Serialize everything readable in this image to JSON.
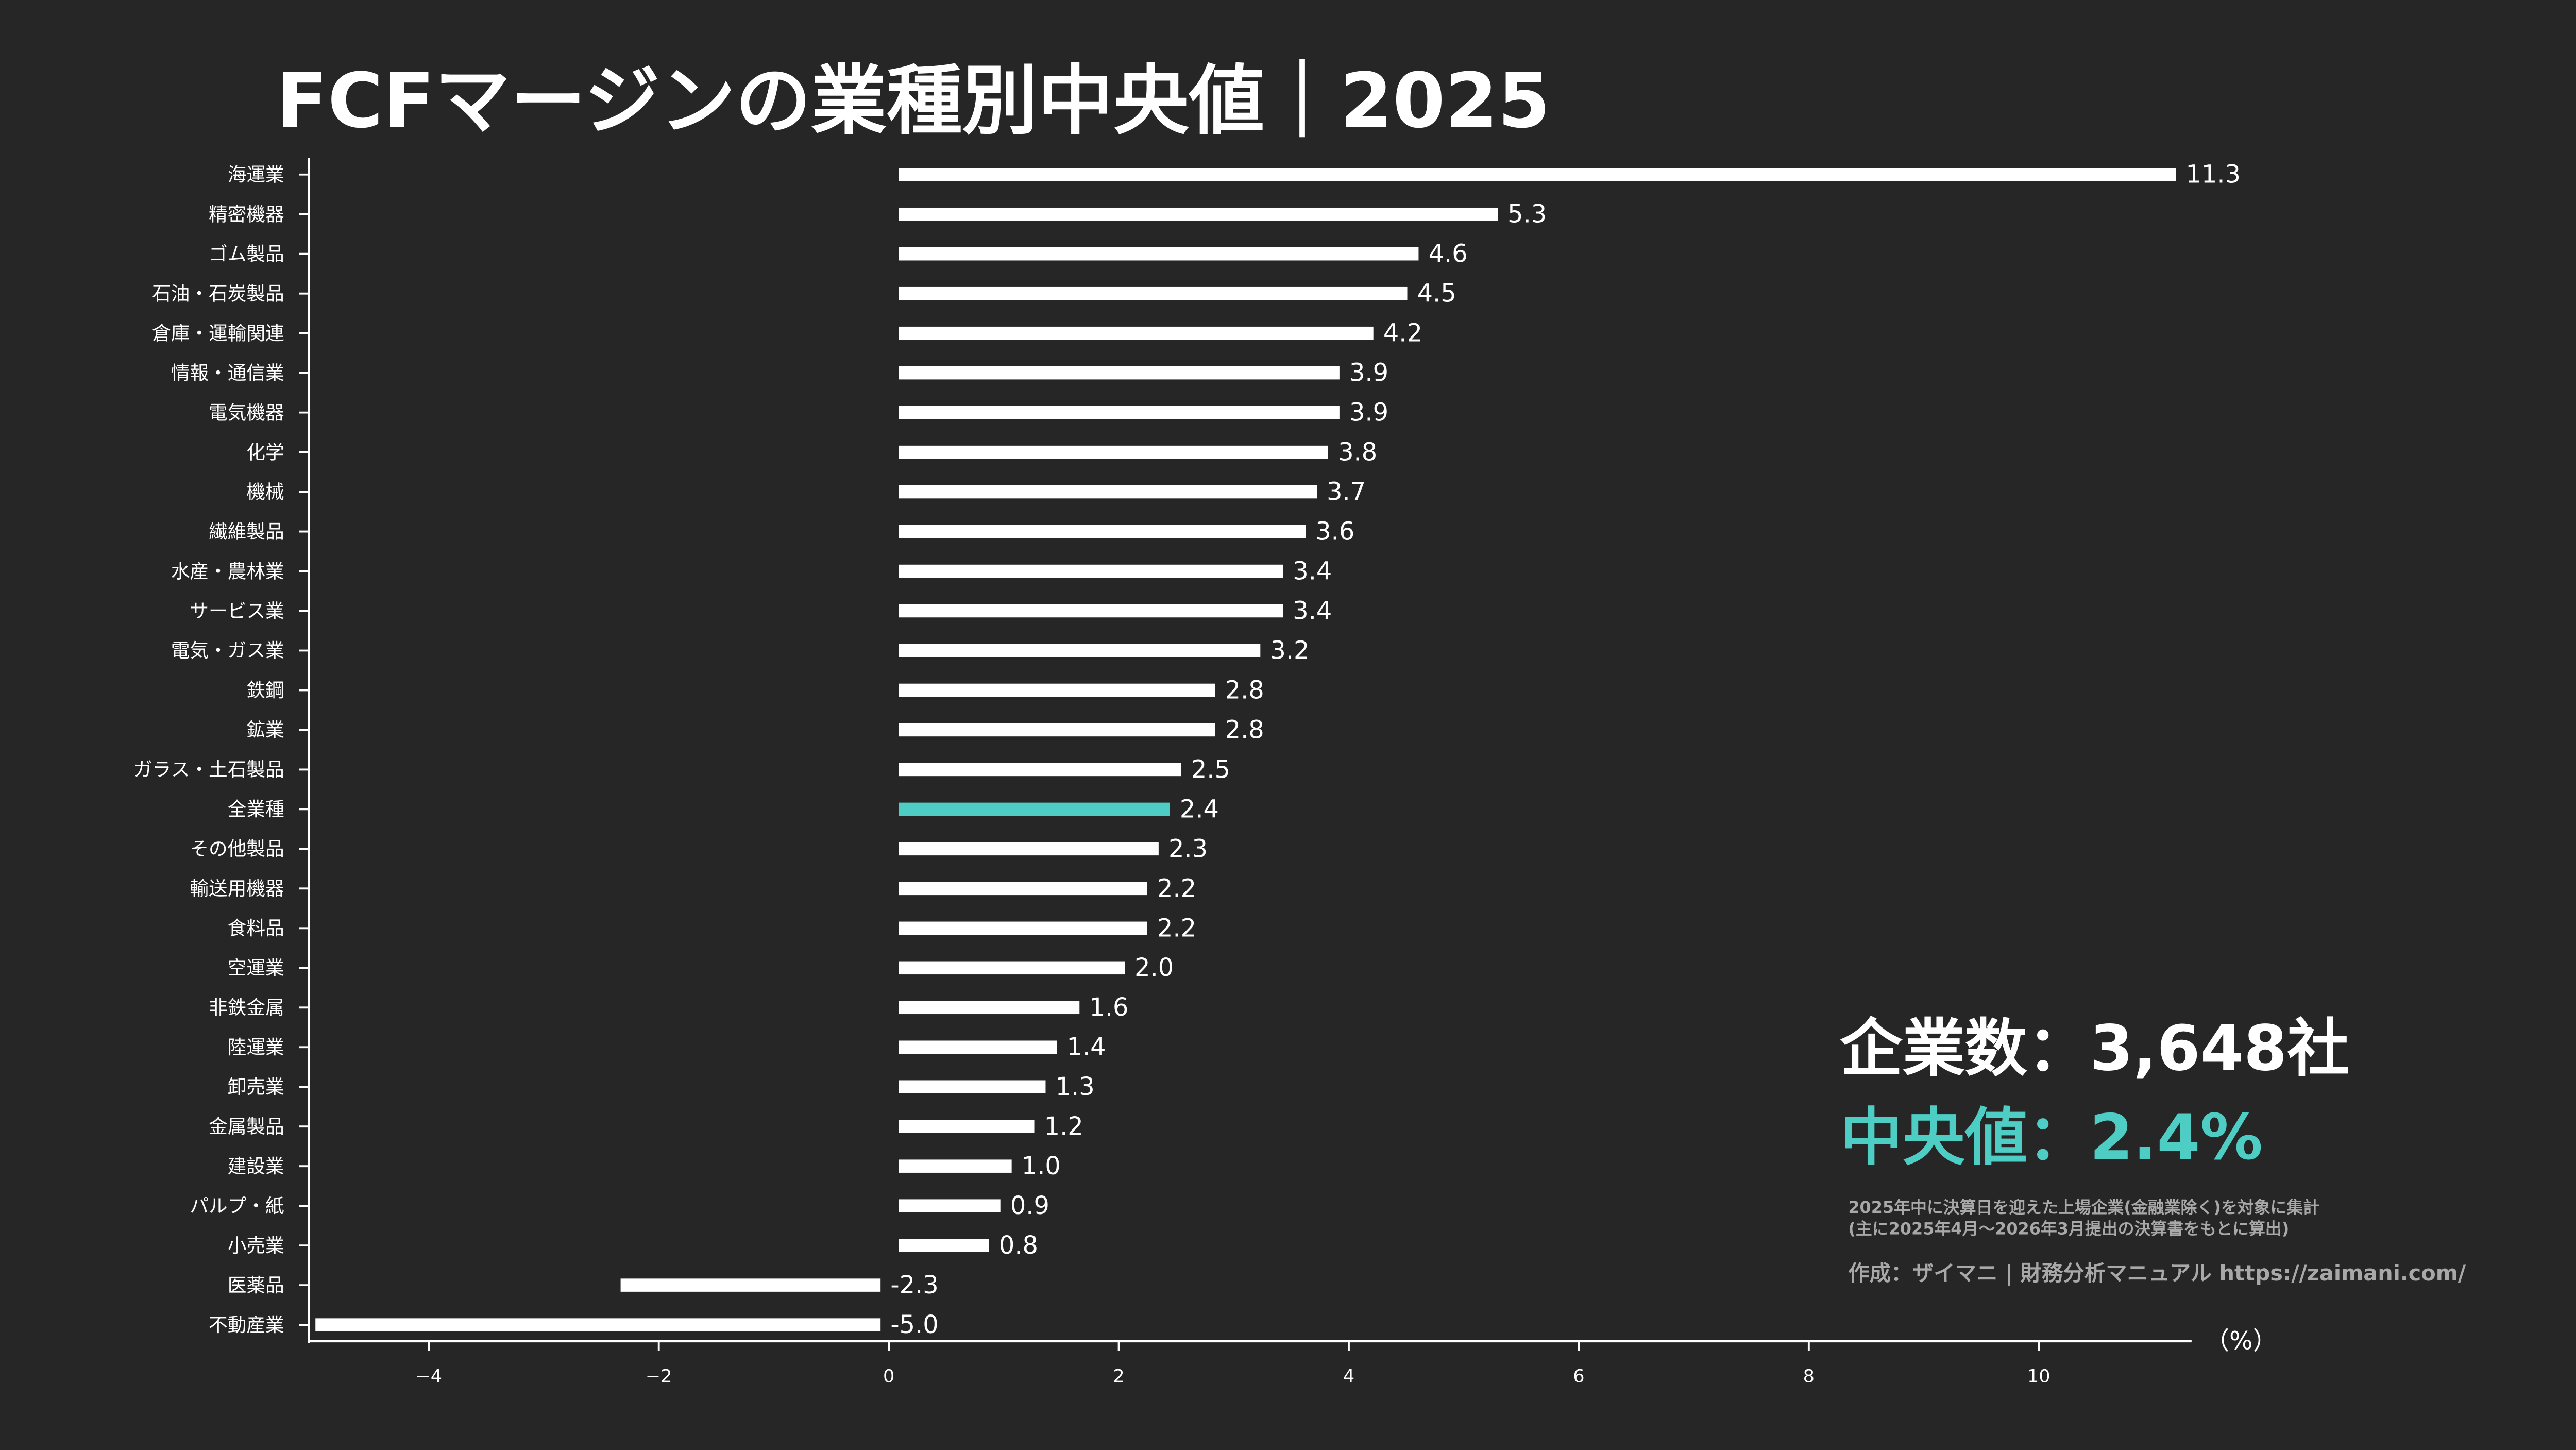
{
  "chart_data": {
    "type": "bar",
    "orientation": "horizontal",
    "title": "FCFマージンの業種別中央値｜2025",
    "xlabel": "（%）",
    "xlim": [
      -5.04,
      11.3
    ],
    "xticks": [
      -4,
      -2,
      0,
      2,
      4,
      6,
      8,
      10
    ],
    "xtick_labels": [
      "−4",
      "−2",
      "0",
      "2",
      "4",
      "6",
      "8",
      "10"
    ],
    "grid": false,
    "categories": [
      "海運業",
      "精密機器",
      "ゴム製品",
      "石油・石炭製品",
      "倉庫・運輸関連",
      "情報・通信業",
      "電気機器",
      "化学",
      "機械",
      "繊維製品",
      "水産・農林業",
      "サービス業",
      "電気・ガス業",
      "鉄鋼",
      "鉱業",
      "ガラス・土石製品",
      "全業種",
      "その他製品",
      "輸送用機器",
      "食料品",
      "空運業",
      "非鉄金属",
      "陸運業",
      "卸売業",
      "金属製品",
      "建設業",
      "パルプ・紙",
      "小売業",
      "医薬品",
      "不動産業"
    ],
    "values": [
      11.3,
      5.3,
      4.6,
      4.5,
      4.2,
      3.9,
      3.9,
      3.8,
      3.7,
      3.6,
      3.4,
      3.4,
      3.2,
      2.8,
      2.8,
      2.5,
      2.4,
      2.3,
      2.2,
      2.2,
      2.0,
      1.6,
      1.4,
      1.3,
      1.2,
      1.0,
      0.9,
      0.8,
      -2.3,
      -5.0
    ],
    "value_labels": [
      "11.3",
      "5.3",
      "4.6",
      "4.5",
      "4.2",
      "3.9",
      "3.9",
      "3.8",
      "3.7",
      "3.6",
      "3.4",
      "3.4",
      "3.2",
      "2.8",
      "2.8",
      "2.5",
      "2.4",
      "2.3",
      "2.2",
      "2.2",
      "2.0",
      "1.6",
      "1.4",
      "1.3",
      "1.2",
      "1.0",
      "0.9",
      "0.8",
      "-2.3",
      "-5.0"
    ],
    "highlight_category": "全業種",
    "colors": {
      "bar": "#ffffff",
      "highlight": "#4ecdc4",
      "background": "#262626"
    }
  },
  "summary": {
    "company_count": "企業数：3,648社",
    "median": "中央値：2.4%",
    "note_line1": "2025年中に決算日を迎えた上場企業(金融業除く)を対象に集計",
    "note_line2": "(主に2025年4月〜2026年3月提出の決算書をもとに算出)",
    "credit": "作成：ザイマニ | 財務分析マニュアル https://zaimani.com/"
  }
}
